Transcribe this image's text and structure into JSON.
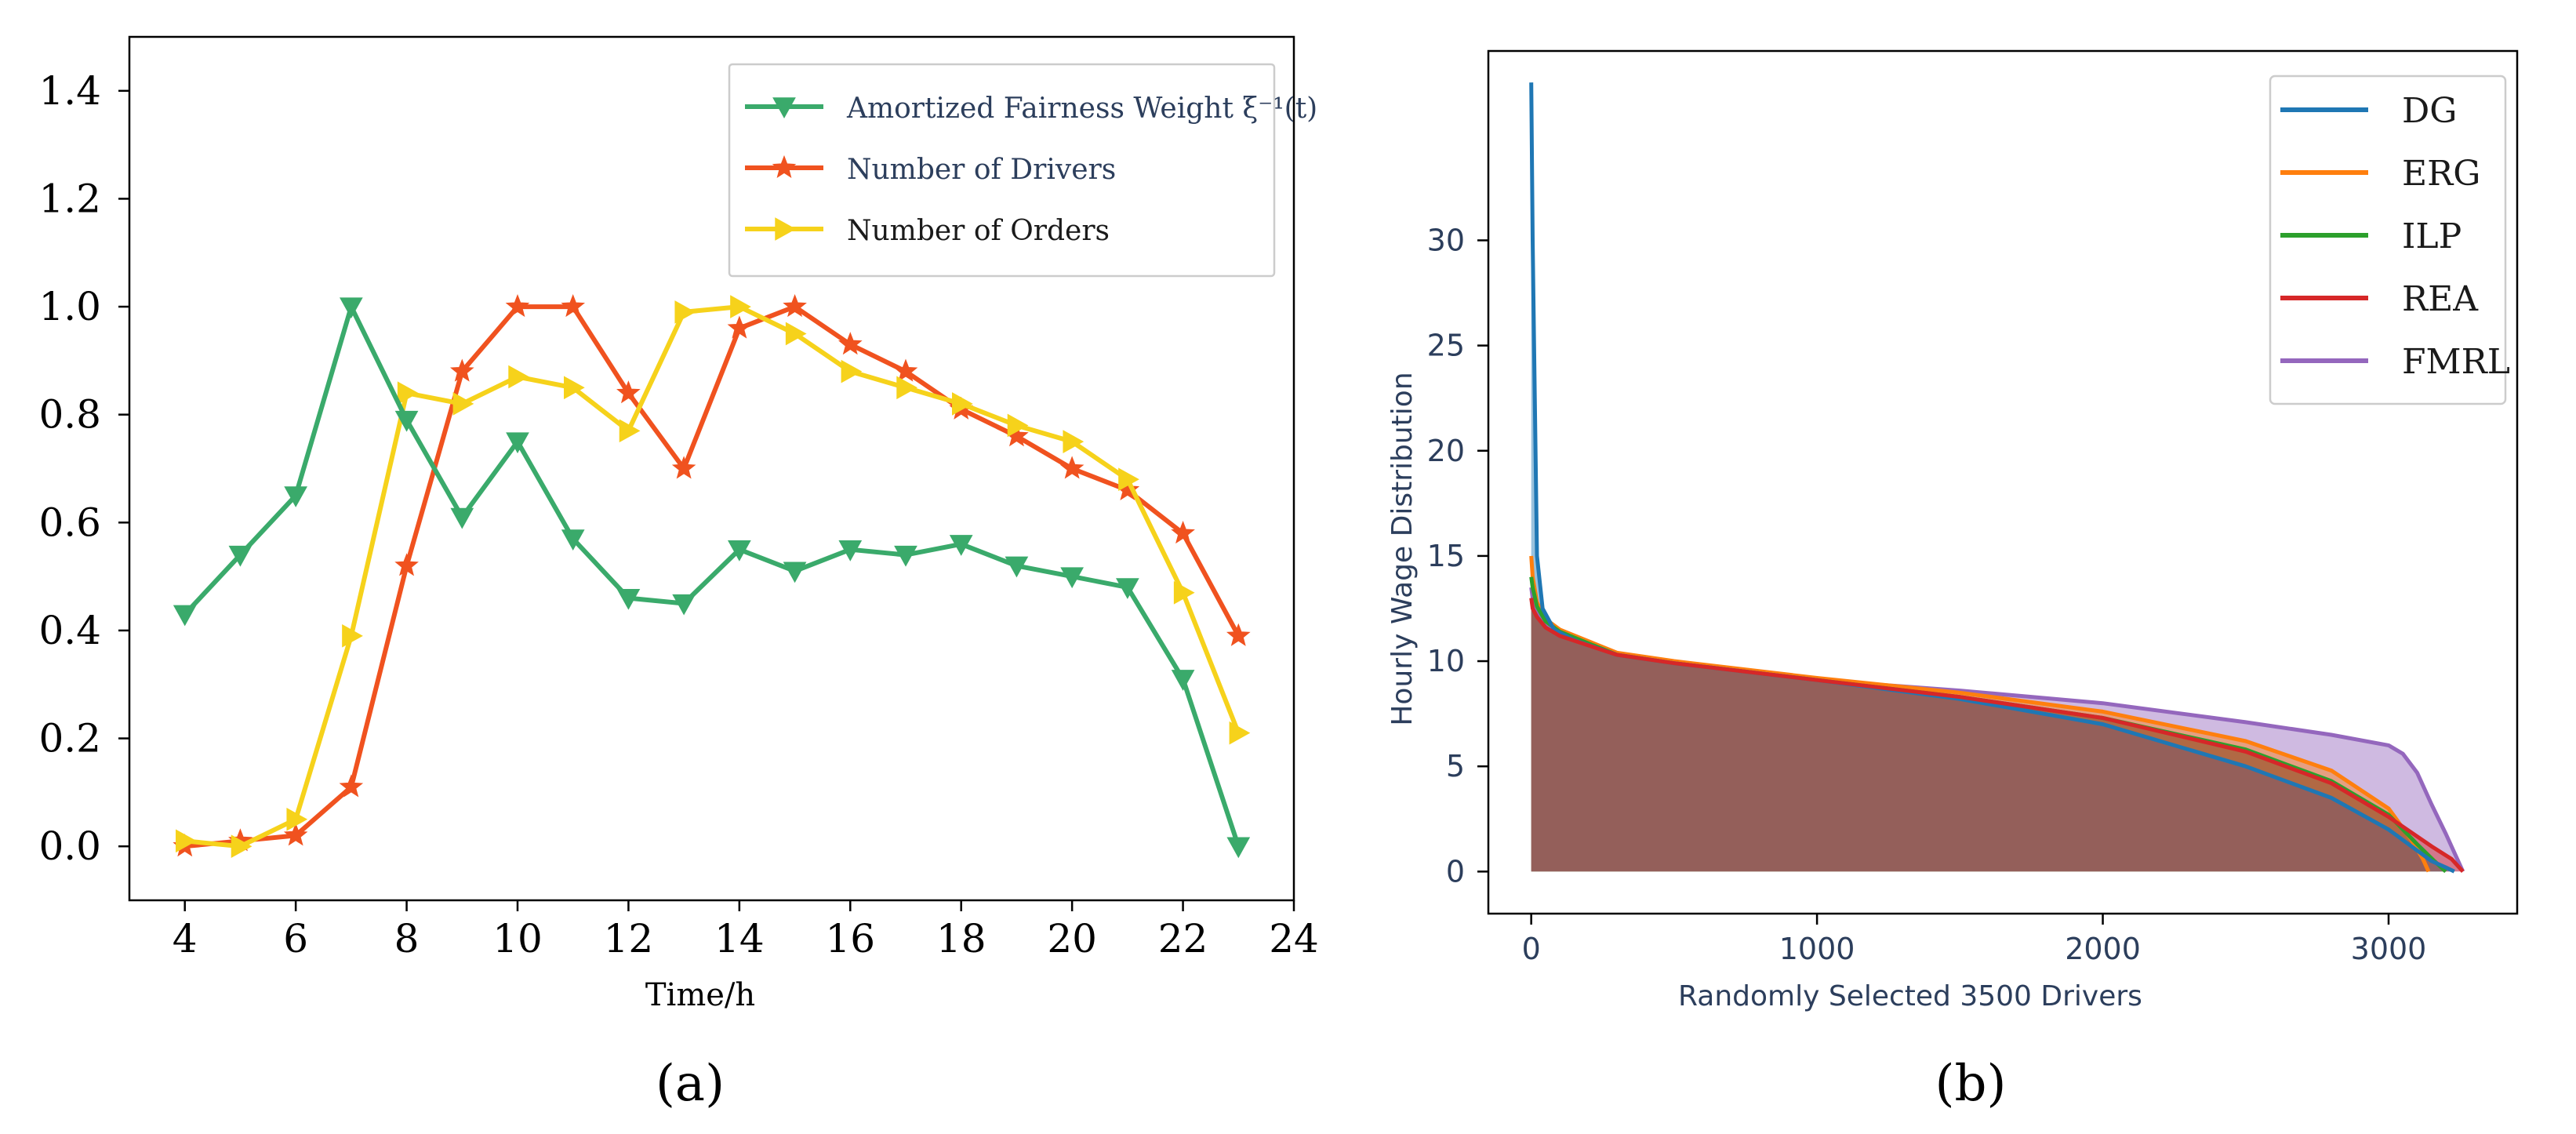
{
  "chart_data": [
    {
      "panel": "(a)",
      "type": "line",
      "title": "",
      "xlabel": "Time/h",
      "ylabel": "",
      "xlim": [
        3,
        24
      ],
      "ylim": [
        -0.1,
        1.5
      ],
      "xticks": [
        4,
        6,
        8,
        10,
        12,
        14,
        16,
        18,
        20,
        22,
        24
      ],
      "yticks": [
        0.0,
        0.2,
        0.4,
        0.6,
        0.8,
        1.0,
        1.2,
        1.4
      ],
      "ytick_labels": [
        "0.0",
        "0.2",
        "0.4",
        "0.6",
        "0.8",
        "1.0",
        "1.2",
        "1.4"
      ],
      "legend_position": "top-right",
      "grid": false,
      "x": [
        4,
        5,
        6,
        7,
        8,
        9,
        10,
        11,
        12,
        13,
        14,
        15,
        16,
        17,
        18,
        19,
        20,
        21,
        22,
        23
      ],
      "series": [
        {
          "name": "Amortized Fairness Weight ξ⁻¹(t)",
          "color": "#3aaa6b",
          "marker": "triangle-down",
          "values": [
            0.43,
            0.54,
            0.65,
            1.0,
            0.79,
            0.61,
            0.75,
            0.57,
            0.46,
            0.45,
            0.55,
            0.51,
            0.55,
            0.54,
            0.56,
            0.52,
            0.5,
            0.48,
            0.31,
            0.0
          ]
        },
        {
          "name": "Number of Drivers",
          "color": "#f0521f",
          "marker": "star",
          "values": [
            0.0,
            0.01,
            0.02,
            0.11,
            0.52,
            0.88,
            1.0,
            1.0,
            0.84,
            0.7,
            0.96,
            1.0,
            0.93,
            0.88,
            0.81,
            0.76,
            0.7,
            0.66,
            0.58,
            0.39
          ]
        },
        {
          "name": "Number of Orders",
          "color": "#f6d21b",
          "marker": "triangle-right",
          "values": [
            0.01,
            0.0,
            0.05,
            0.39,
            0.84,
            0.82,
            0.87,
            0.85,
            0.77,
            0.99,
            1.0,
            0.95,
            0.88,
            0.85,
            0.82,
            0.78,
            0.75,
            0.68,
            0.47,
            0.21
          ]
        }
      ]
    },
    {
      "panel": "(b)",
      "type": "area",
      "title": "",
      "xlabel": "Randomly Selected 3500 Drivers",
      "ylabel": "Hourly Wage Distribution",
      "xlim": [
        -150,
        3450
      ],
      "ylim": [
        -2,
        39
      ],
      "xticks": [
        0,
        1000,
        2000,
        3000
      ],
      "yticks": [
        0,
        5,
        10,
        15,
        20,
        25,
        30
      ],
      "legend_position": "top-right",
      "grid": false,
      "series": [
        {
          "name": "DG",
          "color": "#1f77b4",
          "x": [
            0,
            5,
            10,
            20,
            40,
            80,
            150,
            300,
            500,
            1000,
            1500,
            2000,
            2500,
            2800,
            3000,
            3100,
            3150,
            3200,
            3230
          ],
          "values": [
            37.5,
            30,
            25,
            15,
            12.5,
            11.5,
            11,
            10.3,
            9.9,
            9.1,
            8.2,
            7.0,
            5.0,
            3.5,
            2.0,
            1.0,
            0.5,
            0.2,
            0
          ]
        },
        {
          "name": "ERG",
          "color": "#ff7f0e",
          "x": [
            0,
            5,
            20,
            50,
            100,
            300,
            500,
            1000,
            1500,
            2000,
            2500,
            2800,
            3000,
            3080,
            3120,
            3140
          ],
          "values": [
            15,
            14,
            12.8,
            12,
            11.5,
            10.4,
            10.0,
            9.2,
            8.5,
            7.6,
            6.2,
            4.8,
            3.0,
            1.5,
            0.6,
            0
          ]
        },
        {
          "name": "ILP",
          "color": "#2ca02c",
          "x": [
            0,
            5,
            20,
            50,
            100,
            300,
            500,
            1000,
            1500,
            2000,
            2500,
            2800,
            3000,
            3100,
            3160,
            3200
          ],
          "values": [
            14,
            13.5,
            12.6,
            11.9,
            11.4,
            10.3,
            9.9,
            9.1,
            8.3,
            7.3,
            5.8,
            4.3,
            2.7,
            1.3,
            0.5,
            0
          ]
        },
        {
          "name": "REA",
          "color": "#d62728",
          "x": [
            0,
            5,
            20,
            50,
            100,
            300,
            500,
            1000,
            1500,
            2000,
            2500,
            2800,
            3000,
            3150,
            3220,
            3260
          ],
          "values": [
            13,
            12.5,
            12.1,
            11.6,
            11.2,
            10.3,
            9.9,
            9.1,
            8.3,
            7.3,
            5.7,
            4.2,
            2.6,
            1.2,
            0.6,
            0
          ]
        },
        {
          "name": "FMRL",
          "color": "#9467bd",
          "x": [
            0,
            5,
            20,
            50,
            100,
            300,
            500,
            1000,
            1500,
            2000,
            2500,
            2800,
            3000,
            3050,
            3100,
            3150,
            3200,
            3240,
            3260
          ],
          "values": [
            13.5,
            13,
            12.3,
            11.8,
            11.3,
            10.3,
            9.9,
            9.1,
            8.6,
            8.0,
            7.1,
            6.5,
            6.0,
            5.6,
            4.7,
            3.2,
            1.8,
            0.6,
            0
          ]
        }
      ]
    }
  ],
  "labels": {
    "panel_a": "(a)",
    "panel_b": "(b)"
  }
}
